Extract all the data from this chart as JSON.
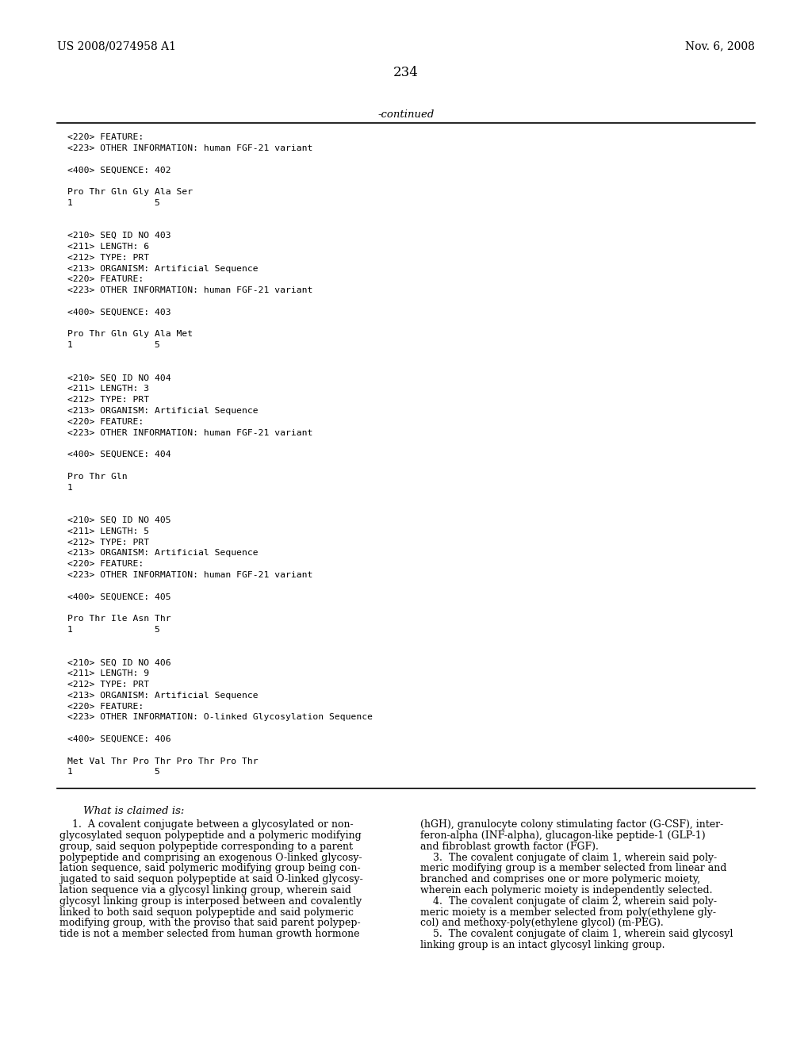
{
  "background_color": "#ffffff",
  "header_left": "US 2008/0274958 A1",
  "header_right": "Nov. 6, 2008",
  "page_number": "234",
  "continued_label": "-continued",
  "monospace_lines": [
    "<220> FEATURE:",
    "<223> OTHER INFORMATION: human FGF-21 variant",
    "",
    "<400> SEQUENCE: 402",
    "",
    "Pro Thr Gln Gly Ala Ser",
    "1               5",
    "",
    "",
    "<210> SEQ ID NO 403",
    "<211> LENGTH: 6",
    "<212> TYPE: PRT",
    "<213> ORGANISM: Artificial Sequence",
    "<220> FEATURE:",
    "<223> OTHER INFORMATION: human FGF-21 variant",
    "",
    "<400> SEQUENCE: 403",
    "",
    "Pro Thr Gln Gly Ala Met",
    "1               5",
    "",
    "",
    "<210> SEQ ID NO 404",
    "<211> LENGTH: 3",
    "<212> TYPE: PRT",
    "<213> ORGANISM: Artificial Sequence",
    "<220> FEATURE:",
    "<223> OTHER INFORMATION: human FGF-21 variant",
    "",
    "<400> SEQUENCE: 404",
    "",
    "Pro Thr Gln",
    "1",
    "",
    "",
    "<210> SEQ ID NO 405",
    "<211> LENGTH: 5",
    "<212> TYPE: PRT",
    "<213> ORGANISM: Artificial Sequence",
    "<220> FEATURE:",
    "<223> OTHER INFORMATION: human FGF-21 variant",
    "",
    "<400> SEQUENCE: 405",
    "",
    "Pro Thr Ile Asn Thr",
    "1               5",
    "",
    "",
    "<210> SEQ ID NO 406",
    "<211> LENGTH: 9",
    "<212> TYPE: PRT",
    "<213> ORGANISM: Artificial Sequence",
    "<220> FEATURE:",
    "<223> OTHER INFORMATION: O-linked Glycosylation Sequence",
    "",
    "<400> SEQUENCE: 406",
    "",
    "Met Val Thr Pro Thr Pro Thr Pro Thr",
    "1               5"
  ],
  "claims_title": "What is claimed is:",
  "claims_left": [
    "    1.  A covalent conjugate between a glycosylated or non-",
    "glycosylated sequon polypeptide and a polymeric modifying",
    "group, said sequon polypeptide corresponding to a parent",
    "polypeptide and comprising an exogenous O-linked glycosy-",
    "lation sequence, said polymeric modifying group being con-",
    "jugated to said sequon polypeptide at said O-linked glycosy-",
    "lation sequence via a glycosyl linking group, wherein said",
    "glycosyl linking group is interposed between and covalently",
    "linked to both said sequon polypeptide and said polymeric",
    "modifying group, with the proviso that said parent polypep-",
    "tide is not a member selected from human growth hormone"
  ],
  "claims_right": [
    "(hGH), granulocyte colony stimulating factor (G-CSF), inter-",
    "feron-alpha (INF-alpha), glucagon-like peptide-1 (GLP-1)",
    "and fibroblast growth factor (FGF).",
    "    3.  The covalent conjugate of claim 1, wherein said poly-",
    "meric modifying group is a member selected from linear and",
    "branched and comprises one or more polymeric moiety,",
    "wherein each polymeric moiety is independently selected.",
    "    4.  The covalent conjugate of claim 2, wherein said poly-",
    "meric moiety is a member selected from poly(ethylene gly-",
    "col) and methoxy-poly(ethylene glycol) (m-PEG).",
    "    5.  The covalent conjugate of claim 1, wherein said glycosyl",
    "linking group is an intact glycosyl linking group."
  ]
}
